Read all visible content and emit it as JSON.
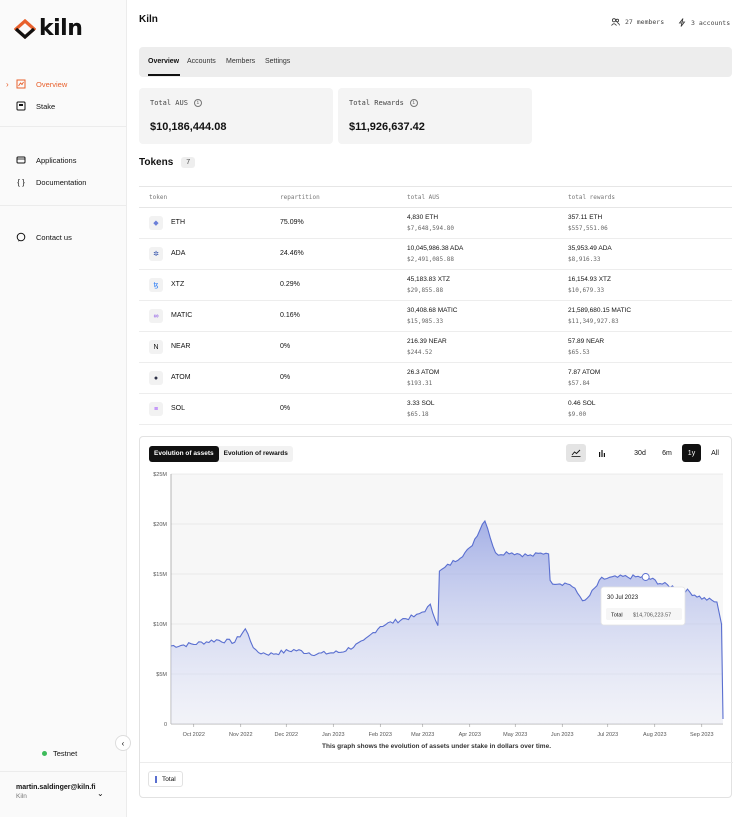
{
  "sidebar": {
    "logo_text": "kiln",
    "brand_color": "#e8602c",
    "nav_primary": [
      {
        "label": "Overview",
        "icon": "chart-icon",
        "active": true
      },
      {
        "label": "Stake",
        "icon": "stake-icon",
        "active": false
      }
    ],
    "nav_secondary": [
      {
        "label": "Applications",
        "icon": "applications-icon"
      },
      {
        "label": "Documentation",
        "icon": "code-icon"
      }
    ],
    "nav_tertiary": [
      {
        "label": "Contact us",
        "icon": "chat-icon"
      }
    ],
    "network": "Testnet",
    "user_email": "martin.saldinger@kiln.fi",
    "user_org": "Kiln"
  },
  "header": {
    "title": "Kiln",
    "members": "27 members",
    "accounts": "3 accounts"
  },
  "tabs": [
    "Overview",
    "Accounts",
    "Members",
    "Settings"
  ],
  "cards": [
    {
      "label": "Total AUS",
      "value": "$10,186,444.08"
    },
    {
      "label": "Total Rewards",
      "value": "$11,926,637.42"
    }
  ],
  "tokens": {
    "title": "Tokens",
    "count": "7",
    "columns": [
      "token",
      "repartition",
      "total AUS",
      "total rewards"
    ],
    "rows": [
      {
        "name": "ETH",
        "icon": "eth-icon",
        "glyph": "◆",
        "color": "#6b7fd8",
        "repartition": "75.09%",
        "aus": "4,830 ETH",
        "aus_usd": "$7,648,594.80",
        "rewards": "357.11 ETH",
        "rewards_usd": "$557,551.06"
      },
      {
        "name": "ADA",
        "icon": "ada-icon",
        "glyph": "✲",
        "color": "#2a4ba8",
        "repartition": "24.46%",
        "aus": "10,045,986.38 ADA",
        "aus_usd": "$2,491,085.88",
        "rewards": "35,953.49 ADA",
        "rewards_usd": "$8,916.33"
      },
      {
        "name": "XTZ",
        "icon": "xtz-icon",
        "glyph": "ꜩ",
        "color": "#2c7df7",
        "repartition": "0.29%",
        "aus": "45,183.83 XTZ",
        "aus_usd": "$29,855.88",
        "rewards": "16,154.93 XTZ",
        "rewards_usd": "$10,679.33"
      },
      {
        "name": "MATIC",
        "icon": "matic-icon",
        "glyph": "∞",
        "color": "#8247e5",
        "repartition": "0.16%",
        "aus": "30,408.68 MATIC",
        "aus_usd": "$15,985.33",
        "rewards": "21,589,680.15 MATIC",
        "rewards_usd": "$11,349,927.83"
      },
      {
        "name": "NEAR",
        "icon": "near-icon",
        "glyph": "N",
        "color": "#111111",
        "repartition": "0%",
        "aus": "216.39 NEAR",
        "aus_usd": "$244.52",
        "rewards": "57.89 NEAR",
        "rewards_usd": "$65.53"
      },
      {
        "name": "ATOM",
        "icon": "atom-icon",
        "glyph": "●",
        "color": "#2e3148",
        "repartition": "0%",
        "aus": "26.3 ATOM",
        "aus_usd": "$193.31",
        "rewards": "7.87 ATOM",
        "rewards_usd": "$57.84"
      },
      {
        "name": "SOL",
        "icon": "sol-icon",
        "glyph": "≡",
        "color": "#9945ff",
        "repartition": "0%",
        "aus": "3.33 SOL",
        "aus_usd": "$65.18",
        "rewards": "0.46 SOL",
        "rewards_usd": "$9.00"
      }
    ]
  },
  "chart_panel": {
    "toggle": [
      "Evolution of assets",
      "Evolution of rewards"
    ],
    "ranges": [
      "30d",
      "6m",
      "1y",
      "All"
    ],
    "active_range": "1y",
    "caption": "This graph shows the evolution of assets under stake in dollars over time.",
    "legend": "Total",
    "tooltip_date": "30 Jul 2023",
    "tooltip_label": "Total",
    "tooltip_value": "$14,706,223.57",
    "line_color": "#5a6fd0"
  },
  "chart_data": {
    "type": "area",
    "ylim": [
      0,
      25000000
    ],
    "yticks": [
      "0",
      "$5M",
      "$10M",
      "$15M",
      "$20M",
      "$25M"
    ],
    "xticks": [
      "Oct 2022",
      "Nov 2022",
      "Dec 2022",
      "Jan 2023",
      "Feb 2023",
      "Mar 2023",
      "Apr 2023",
      "May 2023",
      "Jun 2023",
      "Jul 2023",
      "Aug 2023",
      "Sep 2023"
    ],
    "series": [
      {
        "name": "Total",
        "x": [
          "2022-09-20",
          "2022-10-05",
          "2022-10-20",
          "2022-11-01",
          "2022-11-08",
          "2022-11-15",
          "2022-11-25",
          "2022-12-10",
          "2022-12-25",
          "2023-01-10",
          "2023-01-25",
          "2023-02-05",
          "2023-02-20",
          "2023-03-01",
          "2023-03-10",
          "2023-03-15",
          "2023-03-16",
          "2023-03-25",
          "2023-04-05",
          "2023-04-15",
          "2023-04-22",
          "2023-05-01",
          "2023-05-15",
          "2023-05-27",
          "2023-05-28",
          "2023-06-10",
          "2023-06-20",
          "2023-07-01",
          "2023-07-15",
          "2023-07-30",
          "2023-08-10",
          "2023-08-25",
          "2023-09-05",
          "2023-09-15",
          "2023-09-18",
          "2023-09-19"
        ],
        "values": [
          7.8,
          8.0,
          8.4,
          8.2,
          9.5,
          7.2,
          7.0,
          7.4,
          7.0,
          7.2,
          8.2,
          9.8,
          10.5,
          10.8,
          11.8,
          10.0,
          15.2,
          16.2,
          17.5,
          20.5,
          17.0,
          17.2,
          16.8,
          17.2,
          14.2,
          14.0,
          12.2,
          14.5,
          14.7,
          14.7,
          14.0,
          13.4,
          12.6,
          12.2,
          10.0,
          0.5
        ]
      }
    ],
    "annotation": "30 Jul 2023 — Total $14,706,223.57"
  }
}
